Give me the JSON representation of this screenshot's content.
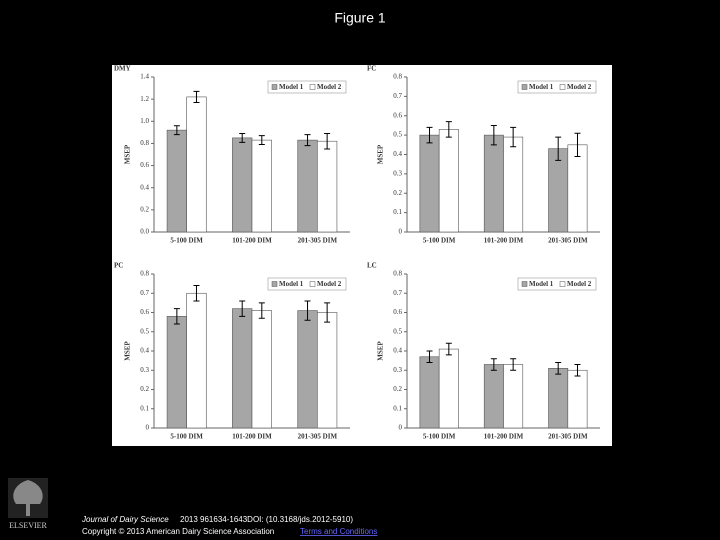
{
  "header": {
    "title": "Figure 1"
  },
  "footer": {
    "journal": "Journal of Dairy Science",
    "citation": "2013 961634-1643DOI: (10.3168/jds.2012-5910)",
    "copyright": "Copyright © 2013 American Dairy Science Association",
    "terms": "Terms and Conditions",
    "logo": "ELSEVIER"
  },
  "chart_data": [
    {
      "type": "bar",
      "title": "DMY",
      "y_label": "MSEP",
      "categories": [
        "5-100 DIM",
        "101-200 DIM",
        "201-305 DIM"
      ],
      "series": [
        {
          "name": "Model 1",
          "color": "#a6a6a6",
          "values": [
            0.92,
            0.85,
            0.83
          ],
          "errors": [
            0.04,
            0.04,
            0.05
          ]
        },
        {
          "name": "Model 2",
          "color": "#ffffff",
          "values": [
            1.22,
            0.83,
            0.82
          ],
          "errors": [
            0.05,
            0.04,
            0.07
          ]
        }
      ],
      "ylim": [
        0,
        1.4
      ],
      "yticks": [
        {
          "value": 0,
          "label": "0.0"
        },
        0.2,
        0.4,
        0.6,
        0.8,
        {
          "value": 1,
          "label": "1.0"
        },
        1.2,
        1.4
      ],
      "legend": "top-right"
    },
    {
      "type": "bar",
      "title": "FC",
      "y_label": "MSEP",
      "categories": [
        "5-100 DIM",
        "101-200 DIM",
        "201-305 DIM"
      ],
      "series": [
        {
          "name": "Model 1",
          "color": "#a6a6a6",
          "values": [
            0.5,
            0.5,
            0.43
          ],
          "errors": [
            0.04,
            0.05,
            0.06
          ]
        },
        {
          "name": "Model 2",
          "color": "#ffffff",
          "values": [
            0.53,
            0.49,
            0.45
          ],
          "errors": [
            0.04,
            0.05,
            0.06
          ]
        }
      ],
      "ylim": [
        0,
        0.8
      ],
      "yticks": [
        0,
        0.1,
        0.2,
        0.3,
        0.4,
        0.5,
        0.6,
        0.7,
        0.8
      ],
      "legend": "top-right"
    },
    {
      "type": "bar",
      "title": "PC",
      "y_label": "MSEP",
      "categories": [
        "5-100 DIM",
        "101-200 DIM",
        "201-305 DIM"
      ],
      "series": [
        {
          "name": "Model 1",
          "color": "#a6a6a6",
          "values": [
            0.58,
            0.62,
            0.61
          ],
          "errors": [
            0.04,
            0.04,
            0.05
          ]
        },
        {
          "name": "Model 2",
          "color": "#ffffff",
          "values": [
            0.7,
            0.61,
            0.6
          ],
          "errors": [
            0.04,
            0.04,
            0.05
          ]
        }
      ],
      "ylim": [
        0,
        0.8
      ],
      "yticks": [
        0,
        0.1,
        0.2,
        0.3,
        0.4,
        0.5,
        0.6,
        0.7,
        0.8
      ],
      "legend": "top-right"
    },
    {
      "type": "bar",
      "title": "LC",
      "y_label": "MSEP",
      "categories": [
        "5-100 DIM",
        "101-200 DIM",
        "201-305 DIM"
      ],
      "series": [
        {
          "name": "Model 1",
          "color": "#a6a6a6",
          "values": [
            0.37,
            0.33,
            0.31
          ],
          "errors": [
            0.03,
            0.03,
            0.03
          ]
        },
        {
          "name": "Model 2",
          "color": "#ffffff",
          "values": [
            0.41,
            0.33,
            0.3
          ],
          "errors": [
            0.03,
            0.03,
            0.03
          ]
        }
      ],
      "ylim": [
        0,
        0.8
      ],
      "yticks": [
        0,
        0.1,
        0.2,
        0.3,
        0.4,
        0.5,
        0.6,
        0.7,
        0.8
      ],
      "legend": "top-right"
    }
  ]
}
